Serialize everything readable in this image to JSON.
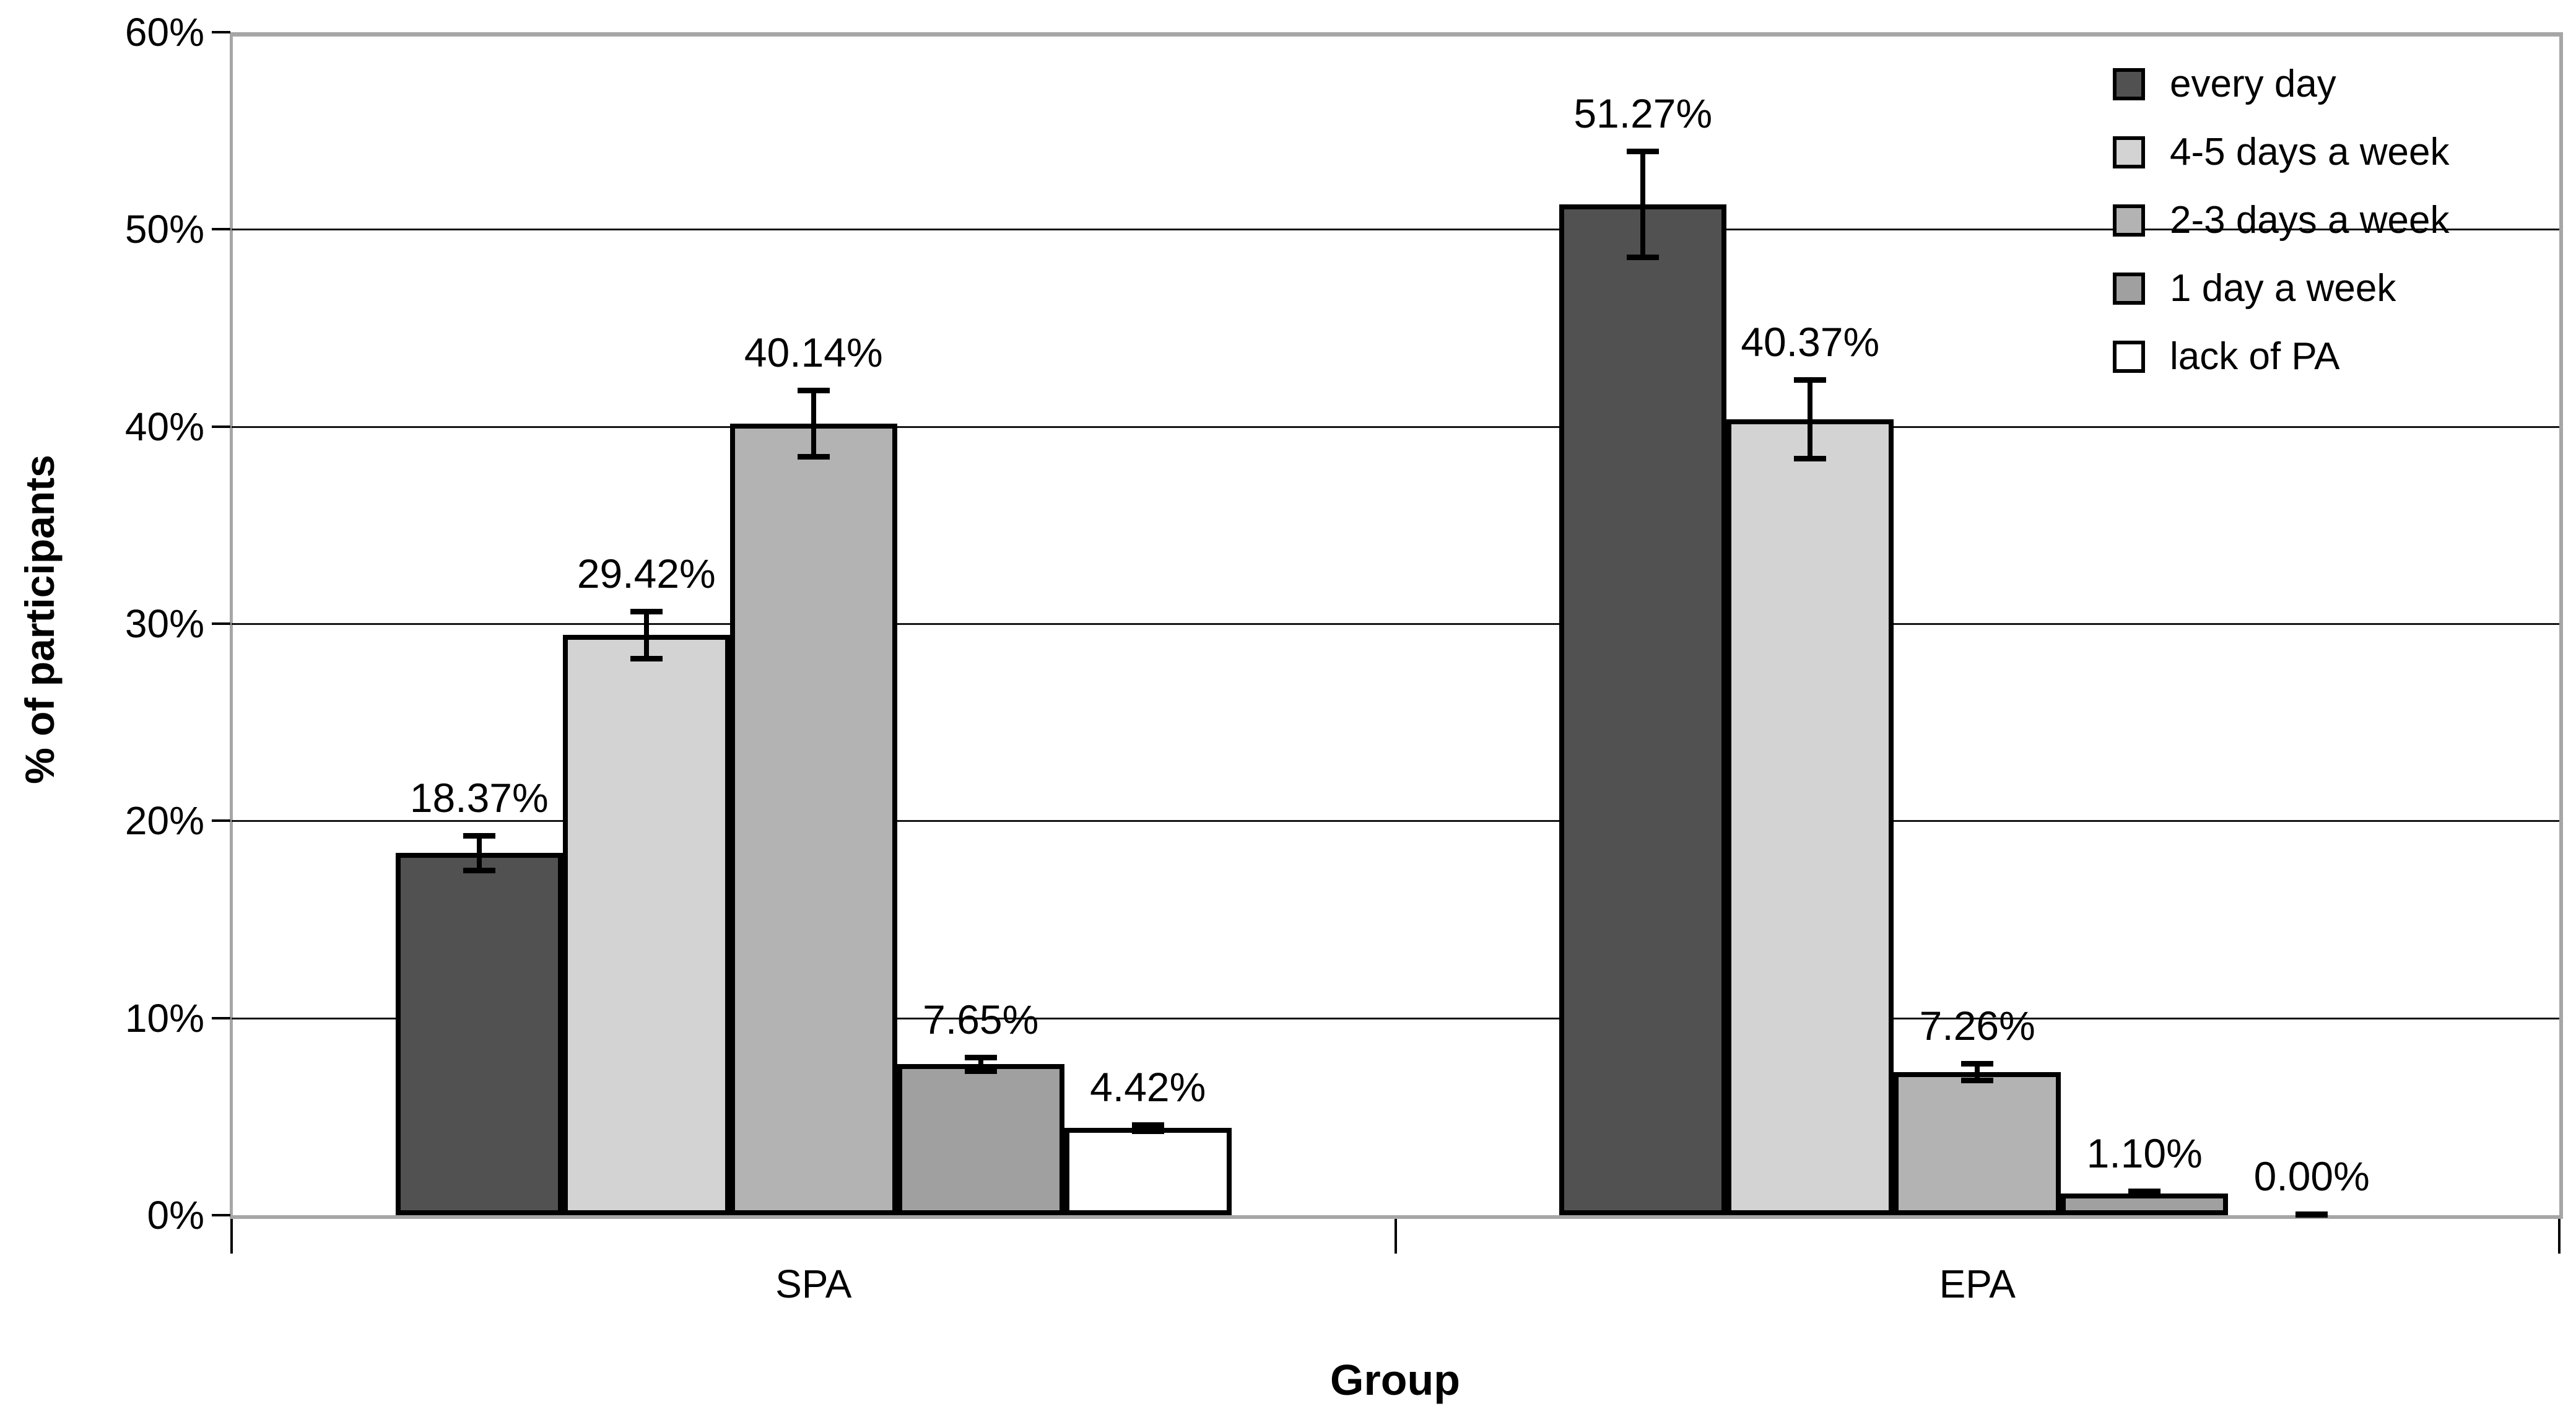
{
  "chart_data": {
    "type": "bar",
    "title": "",
    "xlabel": "Group",
    "ylabel": "% of participants",
    "categories": [
      "SPA",
      "EPA"
    ],
    "y_ticks": [
      "0%",
      "10%",
      "20%",
      "30%",
      "40%",
      "50%",
      "60%"
    ],
    "ylim": [
      0,
      60
    ],
    "grid": true,
    "legend_position": "top-right",
    "series": [
      {
        "name": "every day",
        "color": "#515151",
        "values": [
          18.37,
          51.27
        ],
        "errors": [
          0.9,
          2.7
        ],
        "labels": [
          "18.37%",
          "51.27%"
        ]
      },
      {
        "name": "4-5 days a week",
        "color": "#d3d3d3",
        "values": [
          29.42,
          40.37
        ],
        "errors": [
          1.2,
          2.0
        ],
        "labels": [
          "29.42%",
          "40.37%"
        ]
      },
      {
        "name": "2-3 days a week",
        "color": "#b3b3b3",
        "values": [
          40.14,
          7.26
        ],
        "errors": [
          1.7,
          0.45
        ],
        "labels": [
          "40.14%",
          "7.26%"
        ]
      },
      {
        "name": "1 day a week",
        "color": "#a0a0a0",
        "values": [
          7.65,
          1.1
        ],
        "errors": [
          0.35,
          0.12
        ],
        "labels": [
          "7.65%",
          "1.10%"
        ]
      },
      {
        "name": "lack of PA",
        "color": "#ffffff",
        "values": [
          4.42,
          0.0
        ],
        "errors": [
          0.18,
          0.05
        ],
        "labels": [
          "4.42%",
          "0.00%"
        ]
      }
    ]
  }
}
